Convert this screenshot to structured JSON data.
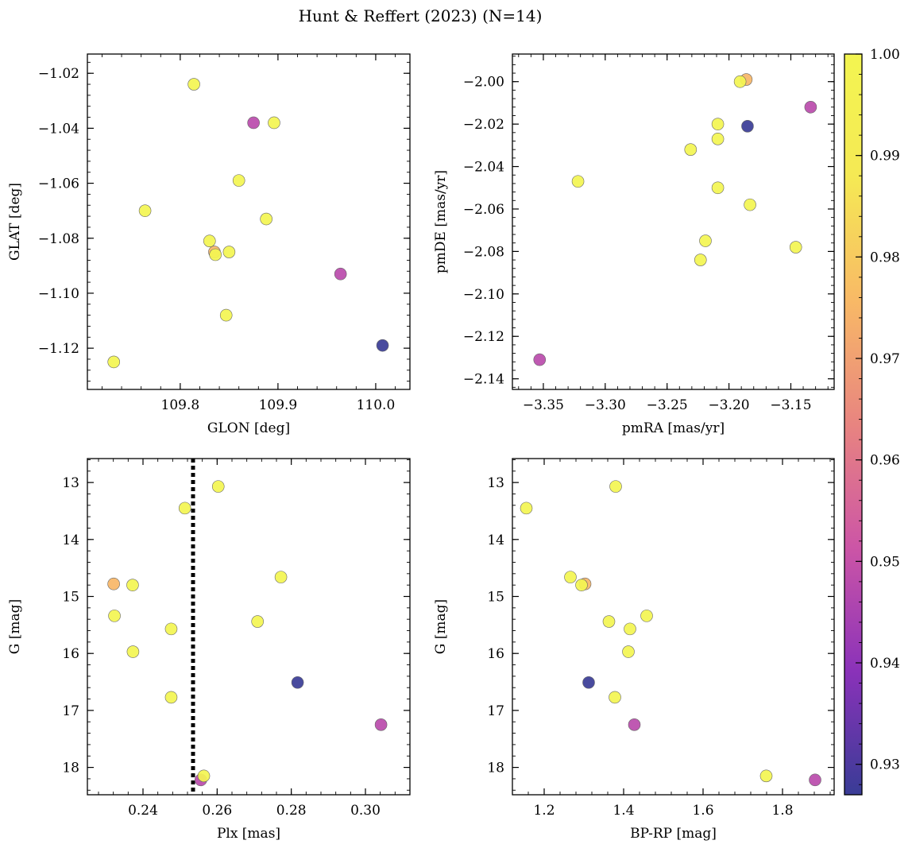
{
  "figure_title": "Hunt & Reffert (2023) (N=14)",
  "colorbar": {
    "range": [
      0.927,
      1.0
    ],
    "ticks": [
      0.93,
      0.94,
      0.95,
      0.96,
      0.97,
      0.98,
      0.99,
      1.0
    ],
    "tick_labels": [
      "0.93",
      "0.94",
      "0.95",
      "0.96",
      "0.97",
      "0.98",
      "0.99",
      "1.00"
    ],
    "colormap": "plasma",
    "colormap_stops": [
      "#393C96",
      "#8A32B9",
      "#CC55A6",
      "#E88480",
      "#F8B966",
      "#F5E954",
      "#F3F551"
    ]
  },
  "chart_data": [
    {
      "type": "scatter",
      "xlabel": "GLON [deg]",
      "ylabel": "GLAT [deg]",
      "xlim": [
        109.705,
        110.035
      ],
      "ylim": [
        -1.135,
        -1.013
      ],
      "xticks": [
        109.8,
        109.9,
        110.0
      ],
      "xtick_labels": [
        "109.8",
        "109.9",
        "110.0"
      ],
      "yticks": [
        -1.02,
        -1.04,
        -1.06,
        -1.08,
        -1.1,
        -1.12
      ],
      "ytick_labels": [
        "−1.02",
        "−1.04",
        "−1.06",
        "−1.08",
        "−1.10",
        "−1.12"
      ],
      "points": [
        {
          "x": 109.814,
          "y": -1.024,
          "c": 1.0
        },
        {
          "x": 109.875,
          "y": -1.038,
          "c": 0.948
        },
        {
          "x": 109.896,
          "y": -1.038,
          "c": 1.0
        },
        {
          "x": 109.86,
          "y": -1.059,
          "c": 1.0
        },
        {
          "x": 109.764,
          "y": -1.07,
          "c": 1.0
        },
        {
          "x": 109.888,
          "y": -1.073,
          "c": 1.0
        },
        {
          "x": 109.83,
          "y": -1.081,
          "c": 1.0
        },
        {
          "x": 109.835,
          "y": -1.085,
          "c": 0.975
        },
        {
          "x": 109.85,
          "y": -1.085,
          "c": 1.0
        },
        {
          "x": 109.836,
          "y": -1.086,
          "c": 1.0
        },
        {
          "x": 109.964,
          "y": -1.093,
          "c": 0.948
        },
        {
          "x": 109.847,
          "y": -1.108,
          "c": 1.0
        },
        {
          "x": 110.007,
          "y": -1.119,
          "c": 0.927
        },
        {
          "x": 109.732,
          "y": -1.125,
          "c": 1.0
        }
      ]
    },
    {
      "type": "scatter",
      "xlabel": "pmRA [mas/yr]",
      "ylabel": "pmDE [mas/yr]",
      "xlim": [
        -3.375,
        -3.115
      ],
      "ylim": [
        -2.145,
        -1.987
      ],
      "xticks": [
        -3.35,
        -3.3,
        -3.25,
        -3.2,
        -3.15
      ],
      "xtick_labels": [
        "−3.35",
        "−3.30",
        "−3.25",
        "−3.20",
        "−3.15"
      ],
      "yticks": [
        -2.0,
        -2.02,
        -2.04,
        -2.06,
        -2.08,
        -2.1,
        -2.12,
        -2.14
      ],
      "ytick_labels": [
        "−2.00",
        "−2.02",
        "−2.04",
        "−2.06",
        "−2.08",
        "−2.10",
        "−2.12",
        "−2.14"
      ],
      "points": [
        {
          "x": -3.186,
          "y": -1.999,
          "c": 0.975
        },
        {
          "x": -3.191,
          "y": -2.0,
          "c": 1.0
        },
        {
          "x": -3.134,
          "y": -2.012,
          "c": 0.948
        },
        {
          "x": -3.209,
          "y": -2.02,
          "c": 1.0
        },
        {
          "x": -3.185,
          "y": -2.021,
          "c": 0.927
        },
        {
          "x": -3.209,
          "y": -2.027,
          "c": 1.0
        },
        {
          "x": -3.231,
          "y": -2.032,
          "c": 1.0
        },
        {
          "x": -3.322,
          "y": -2.047,
          "c": 1.0
        },
        {
          "x": -3.209,
          "y": -2.05,
          "c": 1.0
        },
        {
          "x": -3.183,
          "y": -2.058,
          "c": 1.0
        },
        {
          "x": -3.219,
          "y": -2.075,
          "c": 1.0
        },
        {
          "x": -3.146,
          "y": -2.078,
          "c": 1.0
        },
        {
          "x": -3.223,
          "y": -2.084,
          "c": 1.0
        },
        {
          "x": -3.353,
          "y": -2.131,
          "c": 0.948
        }
      ]
    },
    {
      "type": "scatter",
      "xlabel": "Plx [mas]",
      "ylabel": "G [mag]",
      "xlim": [
        0.225,
        0.312
      ],
      "ylim": [
        18.48,
        12.58
      ],
      "inverted_y": true,
      "vline_x": 0.2535,
      "xticks": [
        0.24,
        0.26,
        0.28,
        0.3
      ],
      "xtick_labels": [
        "0.24",
        "0.26",
        "0.28",
        "0.30"
      ],
      "yticks": [
        13,
        14,
        15,
        16,
        17,
        18
      ],
      "ytick_labels": [
        "13",
        "14",
        "15",
        "16",
        "17",
        "18"
      ],
      "points": [
        {
          "x": 0.2603,
          "y": 13.07,
          "c": 1.0
        },
        {
          "x": 0.2513,
          "y": 13.45,
          "c": 1.0
        },
        {
          "x": 0.2772,
          "y": 14.66,
          "c": 1.0
        },
        {
          "x": 0.2321,
          "y": 14.78,
          "c": 0.975
        },
        {
          "x": 0.2372,
          "y": 14.8,
          "c": 1.0
        },
        {
          "x": 0.2323,
          "y": 15.34,
          "c": 1.0
        },
        {
          "x": 0.2709,
          "y": 15.44,
          "c": 1.0
        },
        {
          "x": 0.2476,
          "y": 15.57,
          "c": 1.0
        },
        {
          "x": 0.2373,
          "y": 15.97,
          "c": 1.0
        },
        {
          "x": 0.2817,
          "y": 16.51,
          "c": 0.927
        },
        {
          "x": 0.2476,
          "y": 16.77,
          "c": 1.0
        },
        {
          "x": 0.3042,
          "y": 17.25,
          "c": 0.948
        },
        {
          "x": 0.2556,
          "y": 18.22,
          "c": 0.948
        },
        {
          "x": 0.2564,
          "y": 18.15,
          "c": 1.0
        }
      ]
    },
    {
      "type": "scatter",
      "xlabel": "BP-RP [mag]",
      "ylabel": "G [mag]",
      "xlim": [
        1.12,
        1.93
      ],
      "ylim": [
        18.48,
        12.58
      ],
      "inverted_y": true,
      "xticks": [
        1.2,
        1.4,
        1.6,
        1.8
      ],
      "xtick_labels": [
        "1.2",
        "1.4",
        "1.6",
        "1.8"
      ],
      "yticks": [
        13,
        14,
        15,
        16,
        17,
        18
      ],
      "ytick_labels": [
        "13",
        "14",
        "15",
        "16",
        "17",
        "18"
      ],
      "points": [
        {
          "x": 1.38,
          "y": 13.07,
          "c": 1.0
        },
        {
          "x": 1.155,
          "y": 13.45,
          "c": 1.0
        },
        {
          "x": 1.266,
          "y": 14.66,
          "c": 1.0
        },
        {
          "x": 1.303,
          "y": 14.78,
          "c": 0.975
        },
        {
          "x": 1.294,
          "y": 14.8,
          "c": 1.0
        },
        {
          "x": 1.458,
          "y": 15.34,
          "c": 1.0
        },
        {
          "x": 1.363,
          "y": 15.44,
          "c": 1.0
        },
        {
          "x": 1.416,
          "y": 15.57,
          "c": 1.0
        },
        {
          "x": 1.412,
          "y": 15.97,
          "c": 1.0
        },
        {
          "x": 1.312,
          "y": 16.51,
          "c": 0.927
        },
        {
          "x": 1.378,
          "y": 16.77,
          "c": 1.0
        },
        {
          "x": 1.427,
          "y": 17.25,
          "c": 0.948
        },
        {
          "x": 1.882,
          "y": 18.22,
          "c": 0.948
        },
        {
          "x": 1.759,
          "y": 18.15,
          "c": 1.0
        }
      ]
    }
  ]
}
